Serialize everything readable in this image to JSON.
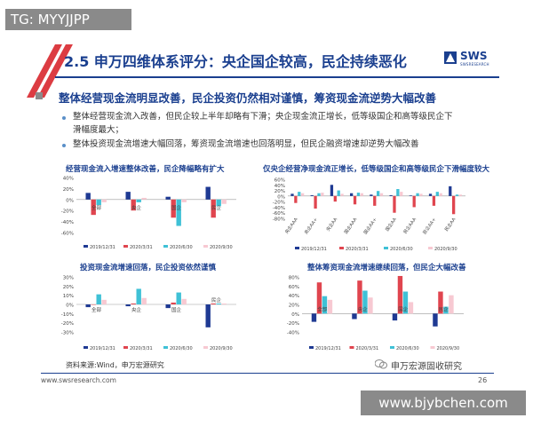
{
  "watermark_top": "TG: MYYJJPP",
  "watermark_bottom": "www.bjybchen.com",
  "title": "2.5 申万四维体系评分：央企国企较高，民企持续恶化",
  "logo": {
    "text": "SWS",
    "sub": "SWSRESEARCH"
  },
  "heading": "整体经营现金流明显改善，民企投资仍然相对谨慎，筹资现金流逆势大幅改善",
  "bullets": [
    {
      "line1": "整体经营现金流入改善，但民企较上半年却略有下滑；央企现金流正增长，低等级国企和高等级民企下",
      "line2": "滑幅度最大；"
    },
    {
      "line1": "整体投资现金流增速大幅回落，筹资现金流增速也回落明显，但民企融资增速却逆势大幅改善",
      "line2": ""
    }
  ],
  "colors": {
    "s1": "#1f3a93",
    "s2": "#e0454f",
    "s3": "#3fc1d6",
    "s4": "#f7c9d2"
  },
  "charts": [
    {
      "title": "经营现金流入增速整体改善，民企降幅略有扩大",
      "chart_data": {
        "type": "bar",
        "categories": [
          "全部",
          "央企",
          "国企",
          "民企"
        ],
        "y_ticks": [
          "40%",
          "20%",
          "0%",
          "-20%",
          "-40%",
          "-60%"
        ],
        "ylim": [
          -60,
          40
        ],
        "series": [
          {
            "name": "2019/12/31",
            "values": [
              12,
              14,
              5,
              23
            ]
          },
          {
            "name": "2020/3/31",
            "values": [
              -28,
              -20,
              -33,
              -33
            ]
          },
          {
            "name": "2020/6/30",
            "values": [
              -10,
              -5,
              -48,
              -12
            ]
          },
          {
            "name": "2020/9/30",
            "values": [
              -5,
              3,
              -5,
              -8
            ]
          }
        ]
      }
    },
    {
      "title": "仅央企经营净现金流正增长，低等级国企和高等级民企下滑幅度较大",
      "chart_data": {
        "type": "bar",
        "categories": [
          "央企AAA",
          "央企AA+",
          "央企AA",
          "国企AAA",
          "国企AA+",
          "国企AA",
          "民企AAA",
          "民企AA+",
          "民企AA"
        ],
        "y_ticks": [
          "60%",
          "40%",
          "20%",
          "0%",
          "-20%",
          "-40%",
          "-60%",
          "-80%"
        ],
        "ylim": [
          -80,
          60
        ],
        "series": [
          {
            "name": "2019/12/31",
            "values": [
              8,
              3,
              40,
              10,
              5,
              3,
              2,
              8,
              35
            ]
          },
          {
            "name": "2020/3/31",
            "values": [
              -25,
              -45,
              -20,
              -30,
              -35,
              -60,
              -40,
              -35,
              -65
            ]
          },
          {
            "name": "2020/6/30",
            "values": [
              15,
              10,
              20,
              12,
              18,
              25,
              10,
              15,
              5
            ]
          },
          {
            "name": "2020/9/30",
            "values": [
              10,
              12,
              8,
              10,
              10,
              15,
              8,
              10,
              5
            ]
          }
        ]
      }
    },
    {
      "title": "投资现金流增速回落，民企投资依然谨慎",
      "chart_data": {
        "type": "bar",
        "categories": [
          "全部",
          "央企",
          "国企",
          "民企"
        ],
        "y_ticks": [
          "30%",
          "20%",
          "10%",
          "0%",
          "-10%",
          "-20%",
          "-30%"
        ],
        "ylim": [
          -30,
          30
        ],
        "series": [
          {
            "name": "2019/12/31",
            "values": [
              -3,
              -2,
              -4,
              -25
            ]
          },
          {
            "name": "2020/3/31",
            "values": [
              0,
              1,
              2,
              1
            ]
          },
          {
            "name": "2020/6/30",
            "values": [
              11,
              17,
              13,
              1
            ]
          },
          {
            "name": "2020/9/30",
            "values": [
              5,
              7,
              6,
              1
            ]
          }
        ]
      }
    },
    {
      "title": "整体筹资现金流增速继续回落，但民企大幅改善",
      "chart_data": {
        "type": "bar",
        "categories": [
          "全部",
          "央企",
          "国企",
          "民企"
        ],
        "y_ticks": [
          "80%",
          "60%",
          "40%",
          "20%",
          "0%",
          "-20%",
          "-40%"
        ],
        "ylim": [
          -40,
          80
        ],
        "series": [
          {
            "name": "2019/12/31",
            "values": [
              -18,
              -12,
              -15,
              -28
            ]
          },
          {
            "name": "2020/3/31",
            "values": [
              68,
              72,
              82,
              48
            ]
          },
          {
            "name": "2020/6/30",
            "values": [
              38,
              50,
              48,
              15
            ]
          },
          {
            "name": "2020/9/30",
            "values": [
              30,
              35,
              25,
              40
            ]
          }
        ]
      }
    }
  ],
  "source": "资料来源:Wind，申万宏源研究",
  "wechat": "申万宏源固收研究",
  "footer_url": "www.swsresearch.com",
  "page_number": "26"
}
